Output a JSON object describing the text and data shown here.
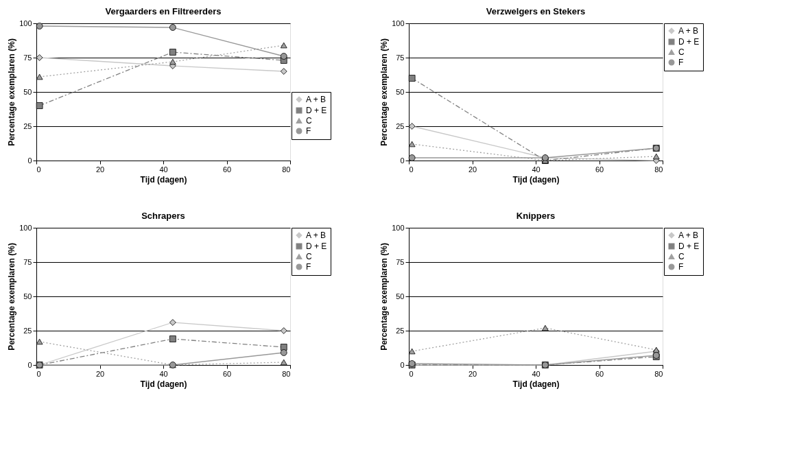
{
  "chart_data": [
    {
      "type": "line",
      "title": "Vergaarders en Filtreerders",
      "xlabel": "Tijd (dagen)",
      "ylabel": "Percentage exemplaren (%)",
      "x": [
        1,
        43,
        78
      ],
      "xlim": [
        0,
        80
      ],
      "xticks": [
        0,
        20,
        40,
        60,
        80
      ],
      "ylim": [
        0,
        100
      ],
      "yticks": [
        0,
        25,
        50,
        75,
        100
      ],
      "grid": "y",
      "legend": "right",
      "series": [
        {
          "name": "A + B",
          "color": "#c8c8c8",
          "marker": "diamond",
          "line_style": "solid",
          "values": [
            75,
            69,
            65
          ]
        },
        {
          "name": "D + E",
          "color": "#808080",
          "marker": "square",
          "line_style": "dashed",
          "values": [
            40,
            79,
            73
          ]
        },
        {
          "name": "C",
          "color": "#a0a0a0",
          "marker": "triangle",
          "line_style": "dotted",
          "values": [
            61,
            72,
            84
          ]
        },
        {
          "name": "F",
          "color": "#989898",
          "marker": "circle",
          "line_style": "solid",
          "values": [
            98,
            97,
            76
          ]
        }
      ]
    },
    {
      "type": "line",
      "title": "Verzwelgers en Stekers",
      "xlabel": "Tijd (dagen)",
      "ylabel": "Percentage exemplaren (%)",
      "x": [
        1,
        43,
        78
      ],
      "xlim": [
        0,
        80
      ],
      "xticks": [
        0,
        20,
        40,
        60,
        80
      ],
      "ylim": [
        0,
        100
      ],
      "yticks": [
        0,
        25,
        50,
        75,
        100
      ],
      "grid": "y",
      "legend": "top right",
      "series": [
        {
          "name": "A + B",
          "color": "#c8c8c8",
          "marker": "diamond",
          "line_style": "solid",
          "values": [
            25,
            2,
            0
          ]
        },
        {
          "name": "D + E",
          "color": "#808080",
          "marker": "square",
          "line_style": "dashed",
          "values": [
            60,
            0,
            9
          ]
        },
        {
          "name": "C",
          "color": "#a0a0a0",
          "marker": "triangle",
          "line_style": "dotted",
          "values": [
            12,
            0,
            3
          ]
        },
        {
          "name": "F",
          "color": "#989898",
          "marker": "circle",
          "line_style": "solid",
          "values": [
            2,
            2,
            9
          ]
        }
      ]
    },
    {
      "type": "line",
      "title": "Schrapers",
      "xlabel": "Tijd (dagen)",
      "ylabel": "Percentage exemplaren (%)",
      "x": [
        1,
        43,
        78
      ],
      "xlim": [
        0,
        80
      ],
      "xticks": [
        0,
        20,
        40,
        60,
        80
      ],
      "ylim": [
        0,
        100
      ],
      "yticks": [
        0,
        25,
        50,
        75,
        100
      ],
      "grid": "y",
      "legend": "top right",
      "series": [
        {
          "name": "A + B",
          "color": "#c8c8c8",
          "marker": "diamond",
          "line_style": "solid",
          "values": [
            0,
            31,
            25
          ]
        },
        {
          "name": "D + E",
          "color": "#808080",
          "marker": "square",
          "line_style": "dashed",
          "values": [
            0,
            19,
            13
          ]
        },
        {
          "name": "C",
          "color": "#a0a0a0",
          "marker": "triangle",
          "line_style": "dotted",
          "values": [
            17,
            0,
            2
          ]
        },
        {
          "name": "F",
          "color": "#989898",
          "marker": "circle",
          "line_style": "solid",
          "values": [
            0,
            0,
            9
          ]
        }
      ]
    },
    {
      "type": "line",
      "title": "Knippers",
      "xlabel": "Tijd (dagen)",
      "ylabel": "Percentage exemplaren (%)",
      "x": [
        1,
        43,
        78
      ],
      "xlim": [
        0,
        80
      ],
      "xticks": [
        0,
        20,
        40,
        60,
        80
      ],
      "ylim": [
        0,
        100
      ],
      "yticks": [
        0,
        25,
        50,
        75,
        100
      ],
      "grid": "y",
      "legend": "top right",
      "series": [
        {
          "name": "A + B",
          "color": "#c8c8c8",
          "marker": "diamond",
          "line_style": "solid",
          "values": [
            0,
            0,
            10
          ]
        },
        {
          "name": "D + E",
          "color": "#808080",
          "marker": "square",
          "line_style": "dashed",
          "values": [
            0,
            0,
            6
          ]
        },
        {
          "name": "C",
          "color": "#a0a0a0",
          "marker": "triangle",
          "line_style": "dotted",
          "values": [
            10,
            27,
            11
          ]
        },
        {
          "name": "F",
          "color": "#989898",
          "marker": "circle",
          "line_style": "solid",
          "values": [
            1,
            0,
            7
          ]
        }
      ]
    }
  ]
}
